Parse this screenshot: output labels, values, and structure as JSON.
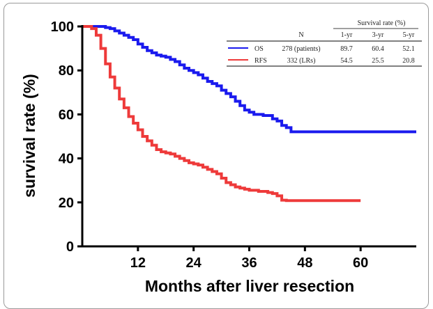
{
  "chart_data": {
    "type": "line",
    "xlabel": "Months after liver resection",
    "ylabel": "survival rate (%)",
    "xlim": [
      0,
      72
    ],
    "ylim": [
      0,
      100
    ],
    "x_ticks": [
      "12",
      "24",
      "36",
      "48",
      "60"
    ],
    "y_ticks": [
      "0",
      "20",
      "40",
      "60",
      "80",
      "100"
    ],
    "colors": {
      "OS": "#1a1aee",
      "RFS": "#ee3a3a"
    },
    "series": [
      {
        "name": "OS",
        "x": [
          0,
          4,
          5,
          6,
          7,
          8,
          9,
          10,
          11,
          12,
          13,
          14,
          15,
          16,
          17,
          18,
          19,
          20,
          21,
          22,
          23,
          24,
          25,
          26,
          27,
          28,
          29,
          30,
          31,
          32,
          33,
          34,
          35,
          36,
          37,
          38,
          39,
          40,
          41,
          42,
          43,
          44,
          45,
          46,
          48,
          55,
          60,
          65,
          72
        ],
        "y": [
          100,
          100,
          99.5,
          99,
          98,
          97,
          96,
          95,
          94,
          92,
          90.5,
          89,
          88,
          87,
          86.5,
          86,
          85,
          84,
          82.5,
          81,
          80,
          79,
          78,
          76.5,
          75,
          74,
          73,
          71,
          69.5,
          68,
          66,
          64,
          62,
          61,
          60,
          60,
          59.5,
          59.5,
          58,
          57,
          55,
          54,
          52.1,
          52.1,
          52.1,
          52.1,
          52.1,
          52.1,
          52.1
        ]
      },
      {
        "name": "RFS",
        "x": [
          0,
          1,
          2,
          3,
          4,
          5,
          6,
          7,
          8,
          9,
          10,
          11,
          12,
          13,
          14,
          15,
          16,
          17,
          18,
          19,
          20,
          21,
          22,
          23,
          24,
          25,
          26,
          27,
          28,
          29,
          30,
          31,
          32,
          33,
          34,
          35,
          36,
          37,
          38,
          39,
          40,
          41,
          42,
          43,
          44,
          46,
          50,
          55,
          60
        ],
        "y": [
          100,
          100,
          99,
          96,
          90,
          83,
          77,
          72,
          67,
          63,
          59,
          56,
          53,
          50,
          48,
          46,
          44,
          43,
          42.5,
          42,
          41,
          40,
          39,
          38,
          37.5,
          37,
          36,
          35,
          34,
          33,
          31,
          29,
          28,
          27,
          26.5,
          26,
          25.5,
          25.5,
          25,
          25,
          24.5,
          24,
          23,
          21,
          20.8,
          20.8,
          20.8,
          20.8,
          20.8
        ]
      }
    ],
    "legend_table": {
      "header_group": "Survival rate (%)",
      "columns": [
        "N",
        "1-yr",
        "3-yr",
        "5-yr"
      ],
      "rows": [
        {
          "label": "OS",
          "n": "278 (patients)",
          "yr1": "89.7",
          "yr3": "60.4",
          "yr5": "52.1"
        },
        {
          "label": "RFS",
          "n": "332 (LRs)",
          "yr1": "54.5",
          "yr3": "25.5",
          "yr5": "20.8"
        }
      ]
    },
    "legend_placement": "top-right",
    "grid": false
  }
}
